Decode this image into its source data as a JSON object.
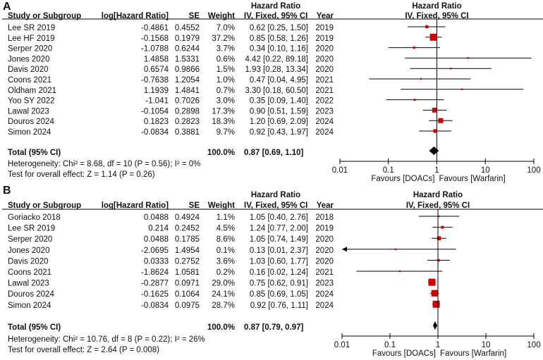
{
  "chart_data": [
    {
      "type": "forest",
      "panel_label": "A",
      "header_group": "Hazard Ratio",
      "columns": [
        "Study or Subgroup",
        "log[Hazard Ratio]",
        "SE",
        "Weight",
        "IV, Fixed, 95% CI",
        "Year"
      ],
      "plot_header": [
        "Hazard Ratio",
        "IV, Fixed, 95% CI"
      ],
      "rows": [
        {
          "study": "Lee SR 2019",
          "loghr": "-0.4861",
          "se": "0.4552",
          "weight": "7.0%",
          "ci": "0.62 [0.25, 1.50]",
          "year": "2019",
          "hr": 0.62,
          "lo": 0.25,
          "hi": 1.5,
          "w": 7.0
        },
        {
          "study": "Lee HF 2019",
          "loghr": "-0.1568",
          "se": "0.1979",
          "weight": "37.2%",
          "ci": "0.85 [0.58, 1.26]",
          "year": "2019",
          "hr": 0.85,
          "lo": 0.58,
          "hi": 1.26,
          "w": 37.2
        },
        {
          "study": "Serper 2020",
          "loghr": "-1.0788",
          "se": "0.6244",
          "weight": "3.7%",
          "ci": "0.34 [0.10, 1.16]",
          "year": "2020",
          "hr": 0.34,
          "lo": 0.1,
          "hi": 1.16,
          "w": 3.7
        },
        {
          "study": "Jones 2020",
          "loghr": "1.4858",
          "se": "1.5331",
          "weight": "0.6%",
          "ci": "4.42 [0.22, 89.18]",
          "year": "2020",
          "hr": 4.42,
          "lo": 0.22,
          "hi": 89.18,
          "w": 0.6
        },
        {
          "study": "Davis 2020",
          "loghr": "0.6574",
          "se": "0.9866",
          "weight": "1.5%",
          "ci": "1.93 [0.28, 13.34]",
          "year": "2020",
          "hr": 1.93,
          "lo": 0.28,
          "hi": 13.34,
          "w": 1.5
        },
        {
          "study": "Coons 2021",
          "loghr": "-0.7638",
          "se": "1.2054",
          "weight": "1.0%",
          "ci": "0.47 [0.04, 4.95]",
          "year": "2021",
          "hr": 0.47,
          "lo": 0.04,
          "hi": 4.95,
          "w": 1.0
        },
        {
          "study": "Oldham 2021",
          "loghr": "1.1939",
          "se": "1.4841",
          "weight": "0.7%",
          "ci": "3.30 [0.18, 60.50]",
          "year": "2021",
          "hr": 3.3,
          "lo": 0.18,
          "hi": 60.5,
          "w": 0.7
        },
        {
          "study": "Yoo SY 2022",
          "loghr": "-1.041",
          "se": "0.7026",
          "weight": "3.0%",
          "ci": "0.35 [0.09, 1.40]",
          "year": "2022",
          "hr": 0.35,
          "lo": 0.09,
          "hi": 1.4,
          "w": 3.0
        },
        {
          "study": "Lawal 2023",
          "loghr": "-0.1054",
          "se": "0.2898",
          "weight": "17.3%",
          "ci": "0.90 [0.51, 1.59]",
          "year": "2023",
          "hr": 0.9,
          "lo": 0.51,
          "hi": 1.59,
          "w": 17.3
        },
        {
          "study": "Douros 2024",
          "loghr": "0.1823",
          "se": "0.2823",
          "weight": "18.3%",
          "ci": "1.20 [0.69, 2.09]",
          "year": "2024",
          "hr": 1.2,
          "lo": 0.69,
          "hi": 2.09,
          "w": 18.3
        },
        {
          "study": "Simon 2024",
          "loghr": "-0.0834",
          "se": "0.3881",
          "weight": "9.7%",
          "ci": "0.92 [0.43, 1.97]",
          "year": "2024",
          "hr": 0.92,
          "lo": 0.43,
          "hi": 1.97,
          "w": 9.7
        }
      ],
      "total": {
        "label": "Total (95% CI)",
        "weight": "100.0%",
        "ci": "0.87 [0.69, 1.10]",
        "hr": 0.87,
        "lo": 0.69,
        "hi": 1.1
      },
      "heterogeneity": "Heterogeneity: Chi² = 8.68, df = 10 (P = 0.56); I² = 0%",
      "overall_effect": "Test for overall effect: Z = 1.14 (P = 0.26)",
      "x_scale": "log",
      "xlim": [
        0.01,
        100
      ],
      "x_ticks": [
        "0.01",
        "0.1",
        "1",
        "10",
        "100"
      ],
      "x_tick_values": [
        0.01,
        0.1,
        1,
        10,
        100
      ],
      "favours_left": "Favours [DOACs]",
      "favours_right": "Favours [Warfarin]"
    },
    {
      "type": "forest",
      "panel_label": "B",
      "header_group": "Hazard Ratio",
      "columns": [
        "Study or Subgroup",
        "log[Hazard Ratio]",
        "SE",
        "Weight",
        "IV, Fixed, 95% CI",
        "Year"
      ],
      "plot_header": [
        "Hazard Ratio",
        "IV, Fixed, 95% CI"
      ],
      "rows": [
        {
          "study": "Goriacko 2018",
          "loghr": "0.0488",
          "se": "0.4924",
          "weight": "1.1%",
          "ci": "1.05 [0.40, 2.76]",
          "year": "2018",
          "hr": 1.05,
          "lo": 0.4,
          "hi": 2.76,
          "w": 1.1
        },
        {
          "study": "Lee SR 2019",
          "loghr": "0.214",
          "se": "0.2452",
          "weight": "4.5%",
          "ci": "1.24 [0.77, 2.00]",
          "year": "2019",
          "hr": 1.24,
          "lo": 0.77,
          "hi": 2.0,
          "w": 4.5
        },
        {
          "study": "Serper 2020",
          "loghr": "0.0488",
          "se": "0.1785",
          "weight": "8.6%",
          "ci": "1.05 [0.74, 1.49]",
          "year": "2020",
          "hr": 1.05,
          "lo": 0.74,
          "hi": 1.49,
          "w": 8.6
        },
        {
          "study": "Jones 2020",
          "loghr": "-2.0695",
          "se": "1.4954",
          "weight": "0.1%",
          "ci": "0.13 [0.01, 2.37]",
          "year": "2020",
          "hr": 0.13,
          "lo": 0.007,
          "hi": 2.37,
          "w": 0.1
        },
        {
          "study": "Davis 2020",
          "loghr": "0.0333",
          "se": "0.2752",
          "weight": "3.6%",
          "ci": "1.03 [0.60, 1.77]",
          "year": "2020",
          "hr": 1.03,
          "lo": 0.6,
          "hi": 1.77,
          "w": 3.6
        },
        {
          "study": "Coons 2021",
          "loghr": "-1.8624",
          "se": "1.0581",
          "weight": "0.2%",
          "ci": "0.16 [0.02, 1.24]",
          "year": "2021",
          "hr": 0.16,
          "lo": 0.02,
          "hi": 1.24,
          "w": 0.2
        },
        {
          "study": "Lawal 2023",
          "loghr": "-0.2877",
          "se": "0.0971",
          "weight": "29.0%",
          "ci": "0.75 [0.62, 0.91]",
          "year": "2023",
          "hr": 0.75,
          "lo": 0.62,
          "hi": 0.91,
          "w": 29.0
        },
        {
          "study": "Douros 2024",
          "loghr": "-0.1625",
          "se": "0.1064",
          "weight": "24.1%",
          "ci": "0.85 [0.69, 1.05]",
          "year": "2024",
          "hr": 0.85,
          "lo": 0.69,
          "hi": 1.05,
          "w": 24.1
        },
        {
          "study": "Simon 2024",
          "loghr": "-0.0834",
          "se": "0.0975",
          "weight": "28.7%",
          "ci": "0.92 [0.76, 1.11]",
          "year": "2024",
          "hr": 0.92,
          "lo": 0.76,
          "hi": 1.11,
          "w": 28.7
        }
      ],
      "total": {
        "label": "Total (95% CI)",
        "weight": "100.0%",
        "ci": "0.87 [0.79, 0.97]",
        "hr": 0.87,
        "lo": 0.79,
        "hi": 0.97
      },
      "heterogeneity": "Heterogeneity: Chi² = 10.76, df = 8 (P = 0.22); I² = 26%",
      "overall_effect": "Test for overall effect: Z = 2.64 (P = 0.008)",
      "x_scale": "log",
      "xlim": [
        0.01,
        100
      ],
      "x_ticks": [
        "0.01",
        "0.1",
        "1",
        "10",
        "100"
      ],
      "x_tick_values": [
        0.01,
        0.1,
        1,
        10,
        100
      ],
      "favours_left": "Favours [DOACs]",
      "favours_right": "Favours [Warfarin]"
    }
  ],
  "colors": {
    "marker": "#cc0000",
    "diamond": "#000000",
    "line": "#000000"
  }
}
